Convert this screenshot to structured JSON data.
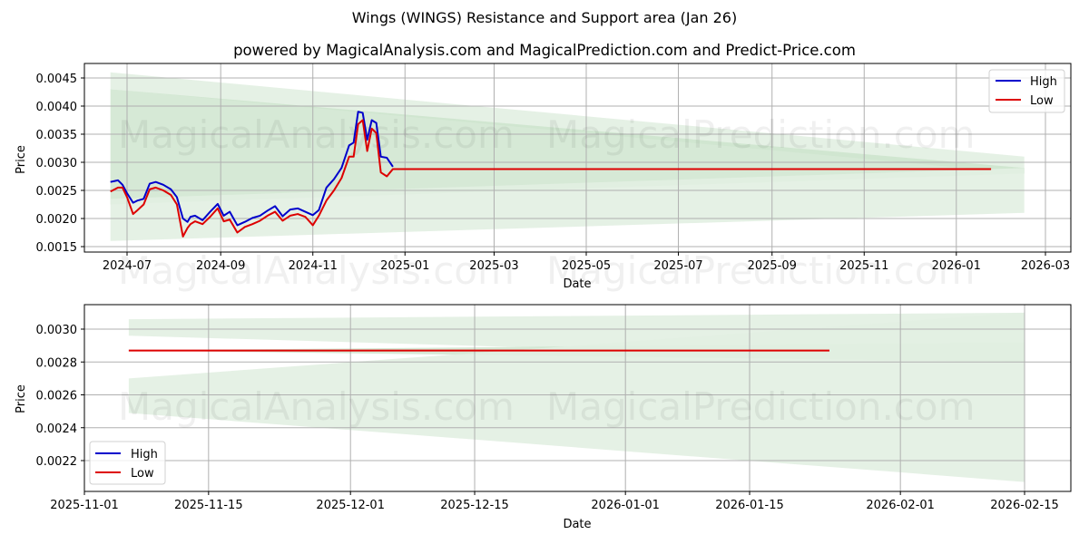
{
  "header": {
    "title": "Wings (WINGS) Resistance and Support area (Jan 26)",
    "subtitle": "powered by MagicalAnalysis.com and MagicalPrediction.com and Predict-Price.com"
  },
  "watermarks": [
    "MagicalAnalysis.com",
    "MagicalPrediction.com"
  ],
  "colors": {
    "high": "#0000cc",
    "low": "#dd0000",
    "band_dark": "#c8e2c8",
    "band_light": "#e2efe2",
    "grid": "#b0b0b0"
  },
  "chart_data": [
    {
      "type": "line",
      "title": "Wings (WINGS) Resistance and Support area (Jan 26)",
      "xlabel": "Date",
      "ylabel": "Price",
      "x_ticks": [
        "2024-07",
        "2024-09",
        "2024-11",
        "2025-01",
        "2025-03",
        "2025-05",
        "2025-07",
        "2025-09",
        "2025-11",
        "2026-01",
        "2026-03"
      ],
      "y_ticks": [
        "0.0015",
        "0.0020",
        "0.0025",
        "0.0030",
        "0.0035",
        "0.0040",
        "0.0045"
      ],
      "ylim": [
        0.00143,
        0.00472
      ],
      "grid": true,
      "legend": {
        "position": "upper right",
        "entries": [
          "High",
          "Low"
        ]
      },
      "series": [
        {
          "name": "High",
          "x": [
            "2024-06-20",
            "2024-06-25",
            "2024-06-28",
            "2024-07-01",
            "2024-07-05",
            "2024-07-08",
            "2024-07-12",
            "2024-07-16",
            "2024-07-20",
            "2024-07-25",
            "2024-07-30",
            "2024-08-03",
            "2024-08-07",
            "2024-08-10",
            "2024-08-12",
            "2024-08-15",
            "2024-08-20",
            "2024-08-25",
            "2024-08-30",
            "2024-09-03",
            "2024-09-07",
            "2024-09-12",
            "2024-09-17",
            "2024-09-22",
            "2024-09-27",
            "2024-10-02",
            "2024-10-07",
            "2024-10-12",
            "2024-10-17",
            "2024-10-22",
            "2024-10-27",
            "2024-11-01",
            "2024-11-05",
            "2024-11-10",
            "2024-11-15",
            "2024-11-20",
            "2024-11-25",
            "2024-11-28",
            "2024-12-01",
            "2024-12-04",
            "2024-12-07",
            "2024-12-10",
            "2024-12-13",
            "2024-12-16",
            "2024-12-20",
            "2024-12-24"
          ],
          "values": [
            0.00265,
            0.00268,
            0.0026,
            0.00245,
            0.00228,
            0.00232,
            0.00235,
            0.00262,
            0.00265,
            0.0026,
            0.00252,
            0.00238,
            0.002,
            0.00194,
            0.00203,
            0.00205,
            0.00197,
            0.00212,
            0.00226,
            0.00205,
            0.00212,
            0.00188,
            0.00194,
            0.00201,
            0.00205,
            0.00214,
            0.00222,
            0.00204,
            0.00216,
            0.00218,
            0.00212,
            0.00206,
            0.00215,
            0.00255,
            0.0027,
            0.0029,
            0.0033,
            0.00335,
            0.0039,
            0.00388,
            0.0034,
            0.00375,
            0.0037,
            0.0031,
            0.00308,
            0.00292
          ]
        },
        {
          "name": "Low",
          "x": [
            "2024-06-20",
            "2024-06-25",
            "2024-06-28",
            "2024-07-01",
            "2024-07-05",
            "2024-07-08",
            "2024-07-12",
            "2024-07-16",
            "2024-07-20",
            "2024-07-25",
            "2024-07-30",
            "2024-08-03",
            "2024-08-07",
            "2024-08-10",
            "2024-08-12",
            "2024-08-15",
            "2024-08-20",
            "2024-08-25",
            "2024-08-30",
            "2024-09-03",
            "2024-09-07",
            "2024-09-12",
            "2024-09-17",
            "2024-09-22",
            "2024-09-27",
            "2024-10-02",
            "2024-10-07",
            "2024-10-12",
            "2024-10-17",
            "2024-10-22",
            "2024-10-27",
            "2024-11-01",
            "2024-11-05",
            "2024-11-10",
            "2024-11-15",
            "2024-11-20",
            "2024-11-25",
            "2024-11-28",
            "2024-12-01",
            "2024-12-04",
            "2024-12-07",
            "2024-12-10",
            "2024-12-13",
            "2024-12-16",
            "2024-12-20",
            "2024-12-24",
            "2025-01-01",
            "2026-01-24"
          ],
          "values": [
            0.00248,
            0.00255,
            0.00255,
            0.00238,
            0.00208,
            0.00215,
            0.00225,
            0.00252,
            0.00255,
            0.0025,
            0.00242,
            0.00225,
            0.00168,
            0.00183,
            0.0019,
            0.00195,
            0.0019,
            0.00203,
            0.00218,
            0.00195,
            0.00198,
            0.00175,
            0.00185,
            0.0019,
            0.00196,
            0.00205,
            0.00212,
            0.00196,
            0.00205,
            0.00208,
            0.00203,
            0.00188,
            0.00205,
            0.00232,
            0.0025,
            0.00272,
            0.0031,
            0.0031,
            0.00368,
            0.00375,
            0.0032,
            0.0036,
            0.00352,
            0.00282,
            0.00275,
            0.00288,
            0.00288,
            0.00288
          ]
        }
      ],
      "bands": [
        {
          "name": "resistance_outer",
          "x": [
            "2024-06-20",
            "2026-02-15"
          ],
          "upper": [
            0.0046,
            0.0031
          ],
          "lower": [
            0.0043,
            0.0028
          ]
        },
        {
          "name": "resistance_inner",
          "x": [
            "2024-06-20",
            "2026-02-15"
          ],
          "upper": [
            0.0043,
            0.0029
          ],
          "lower": [
            0.00225,
            0.0028
          ]
        },
        {
          "name": "support",
          "x": [
            "2024-06-20",
            "2026-02-15"
          ],
          "upper": [
            0.00235,
            0.0029
          ],
          "lower": [
            0.0016,
            0.0021
          ]
        }
      ]
    },
    {
      "type": "line",
      "xlabel": "Date",
      "ylabel": "Price",
      "x_ticks": [
        "2025-11-01",
        "2025-11-15",
        "2025-12-01",
        "2025-12-15",
        "2026-01-01",
        "2026-01-15",
        "2026-02-01",
        "2026-02-15"
      ],
      "y_ticks": [
        "0.0022",
        "0.0024",
        "0.0026",
        "0.0028",
        "0.0030"
      ],
      "ylim": [
        0.00201,
        0.00315
      ],
      "grid": true,
      "legend": {
        "position": "lower left",
        "entries": [
          "High",
          "Low"
        ]
      },
      "series": [
        {
          "name": "High",
          "x": [],
          "values": []
        },
        {
          "name": "Low",
          "x": [
            "2025-11-06",
            "2026-01-24"
          ],
          "values": [
            0.00287,
            0.00287
          ]
        }
      ],
      "bands": [
        {
          "name": "resistance",
          "x": [
            "2025-11-06",
            "2026-02-15"
          ],
          "upper": [
            0.00306,
            0.0031
          ],
          "lower": [
            0.00296,
            0.0028
          ]
        },
        {
          "name": "resistance_inner",
          "x": [
            "2025-11-06",
            "2026-02-15"
          ],
          "upper": [
            0.00287,
            0.00292
          ],
          "lower": [
            0.00287,
            0.0028
          ]
        },
        {
          "name": "support",
          "x": [
            "2025-11-06",
            "2026-02-15"
          ],
          "upper": [
            0.0027,
            0.0031
          ],
          "lower": [
            0.00249,
            0.00207
          ]
        }
      ]
    }
  ]
}
